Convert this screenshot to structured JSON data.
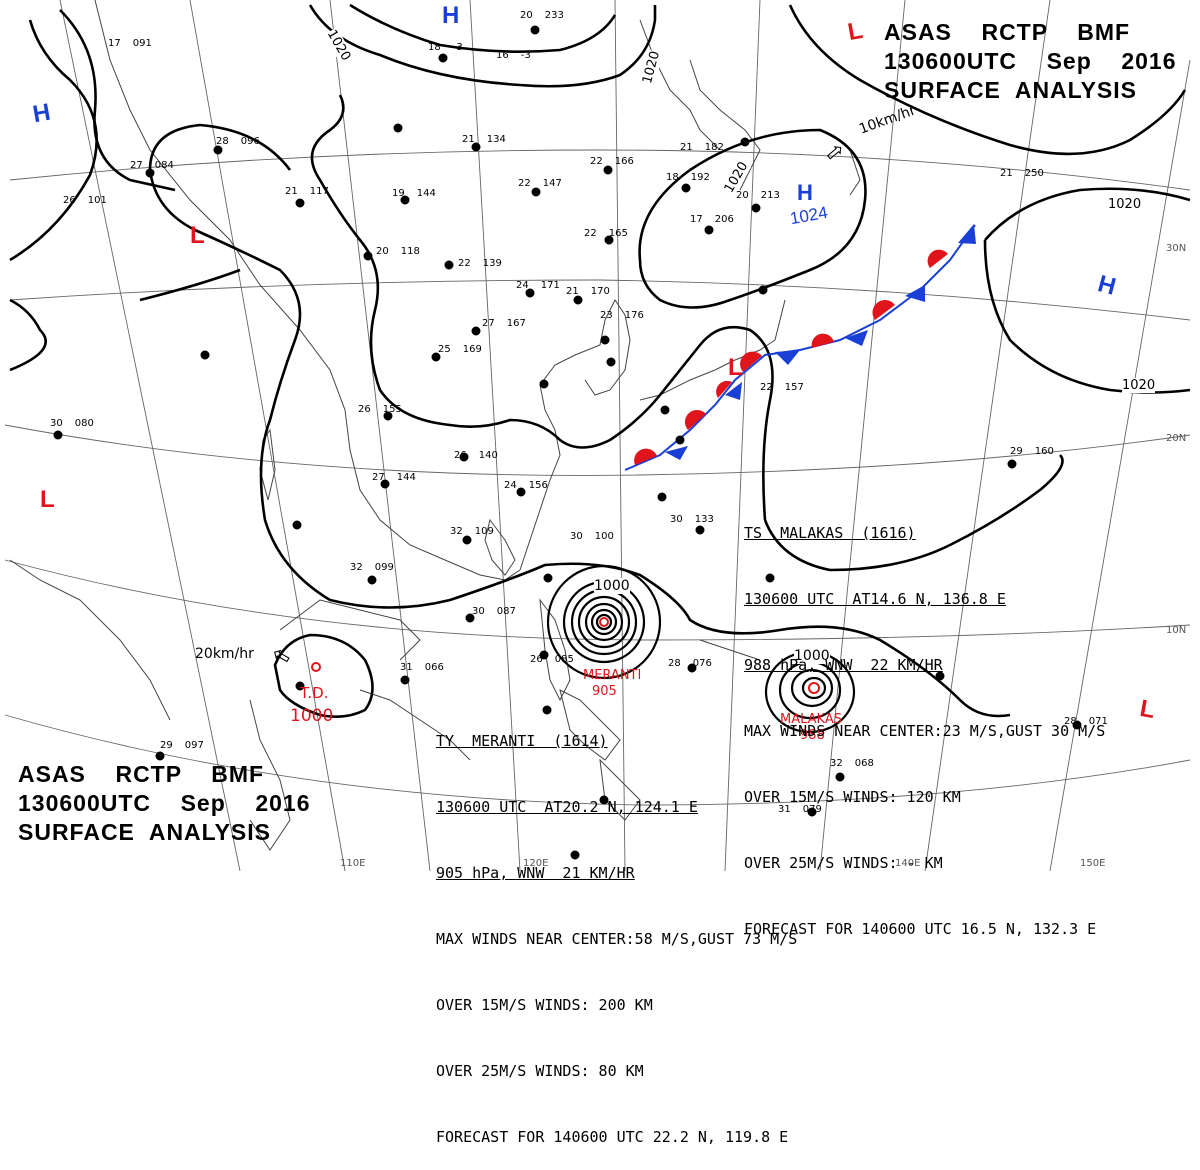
{
  "header_top": {
    "line1": "ASAS    RCTP    BMF",
    "line2": "130600UTC    Sep    2016",
    "line3": "SURFACE  ANALYSIS"
  },
  "header_bottom": {
    "line1": "ASAS    RCTP    BMF",
    "line2": "130600UTC    Sep    2016",
    "line3": "SURFACE  ANALYSIS"
  },
  "isobar_labels": [
    "1020",
    "1020",
    "1020",
    "1020",
    "1020",
    "1000",
    "1000",
    "1000"
  ],
  "pressure_centers": {
    "highs": [
      {
        "label": "H"
      },
      {
        "label": "H"
      },
      {
        "label": "H"
      },
      {
        "label": "H",
        "value": "1024"
      }
    ],
    "lows": [
      {
        "label": "L"
      },
      {
        "label": "L"
      },
      {
        "label": "L"
      },
      {
        "label": "L"
      },
      {
        "label": "L"
      }
    ]
  },
  "motion_arrows": [
    {
      "label": "10km/hr"
    },
    {
      "label": "20km/hr"
    }
  ],
  "tropical_depression": {
    "label": "T.D.",
    "pressure": "1000"
  },
  "storm_labels": [
    {
      "name": "MERANTI",
      "pressure": "905"
    },
    {
      "name": "MALAKAS",
      "pressure": "988"
    }
  ],
  "lat_labels": [
    "30N",
    "20N",
    "10N"
  ],
  "lon_labels": [
    "110E",
    "120E",
    "140E",
    "150E"
  ],
  "malakas_info": {
    "title": "TS  MALAKAS  (1616)",
    "line2": "130600 UTC  AT14.6 N, 136.8 E",
    "line3": "988 hPa, WNW  22 KM/HR",
    "line4": "MAX WINDS NEAR CENTER:23 M/S,GUST 30 M/S",
    "line5": "OVER 15M/S WINDS: 120 KM",
    "line6": "OVER 25M/S WINDS: - KM",
    "line7": "FORECAST FOR 140600 UTC 16.5 N, 132.3 E"
  },
  "meranti_info": {
    "title": "TY  MERANTI  (1614)",
    "line2": "130600 UTC  AT20.2 N, 124.1 E",
    "line3": "905 hPa, WNW  21 KM/HR",
    "line4": "MAX WINDS NEAR CENTER:58 M/S,GUST 73 M/S",
    "line5": "OVER 15M/S WINDS: 200 KM",
    "line6": "OVER 25M/S WINDS: 80 KM",
    "line7": "FORECAST FOR 140600 UTC 22.2 N, 119.8 E"
  },
  "station_plots": [
    {
      "t": "17",
      "p": "091"
    },
    {
      "t": "20",
      "p": "233"
    },
    {
      "t": "18",
      "p": "-3"
    },
    {
      "t": "16",
      "p": "-3"
    },
    {
      "t": "28",
      "p": "096"
    },
    {
      "t": "27",
      "p": "084"
    },
    {
      "t": "26",
      "p": "101"
    },
    {
      "t": "21",
      "p": "117"
    },
    {
      "t": "19",
      "p": "144"
    },
    {
      "t": "20",
      "p": "118"
    },
    {
      "t": "22",
      "p": "139"
    },
    {
      "t": "21",
      "p": "134"
    },
    {
      "t": "22",
      "p": "147"
    },
    {
      "t": "22",
      "p": "166"
    },
    {
      "t": "21",
      "p": "182"
    },
    {
      "t": "18",
      "p": "192"
    },
    {
      "t": "17",
      "p": "206"
    },
    {
      "t": "20",
      "p": "213"
    },
    {
      "t": "22",
      "p": "165"
    },
    {
      "t": "24",
      "p": "171"
    },
    {
      "t": "21",
      "p": "170"
    },
    {
      "t": "27",
      "p": "167"
    },
    {
      "t": "25",
      "p": "169"
    },
    {
      "t": "23",
      "p": "176"
    },
    {
      "t": "26",
      "p": "155"
    },
    {
      "t": "27",
      "p": "144"
    },
    {
      "t": "26",
      "p": "140"
    },
    {
      "t": "24",
      "p": "156"
    },
    {
      "t": "32",
      "p": "109"
    },
    {
      "t": "32",
      "p": "099"
    },
    {
      "t": "30",
      "p": "087"
    },
    {
      "t": "30",
      "p": "080"
    },
    {
      "t": "29",
      "p": "097"
    },
    {
      "t": "31",
      "p": "066"
    },
    {
      "t": "28",
      "p": "076"
    },
    {
      "t": "29",
      "p": "160"
    },
    {
      "t": "21",
      "p": "250"
    },
    {
      "t": "31",
      "p": "079"
    },
    {
      "t": "32",
      "p": "068"
    },
    {
      "t": "28",
      "p": "071"
    },
    {
      "t": "30",
      "p": "133"
    },
    {
      "t": "22",
      "p": "157"
    },
    {
      "t": "30",
      "p": "100"
    },
    {
      "t": "26",
      "p": "085"
    }
  ],
  "colors": {
    "high": "#1a3fd6",
    "low": "#e0151b",
    "warm_front": "#e0151b",
    "cold_front": "#1a3fd6",
    "storm": "#e0151b",
    "line": "#000000",
    "grid": "#555555"
  }
}
